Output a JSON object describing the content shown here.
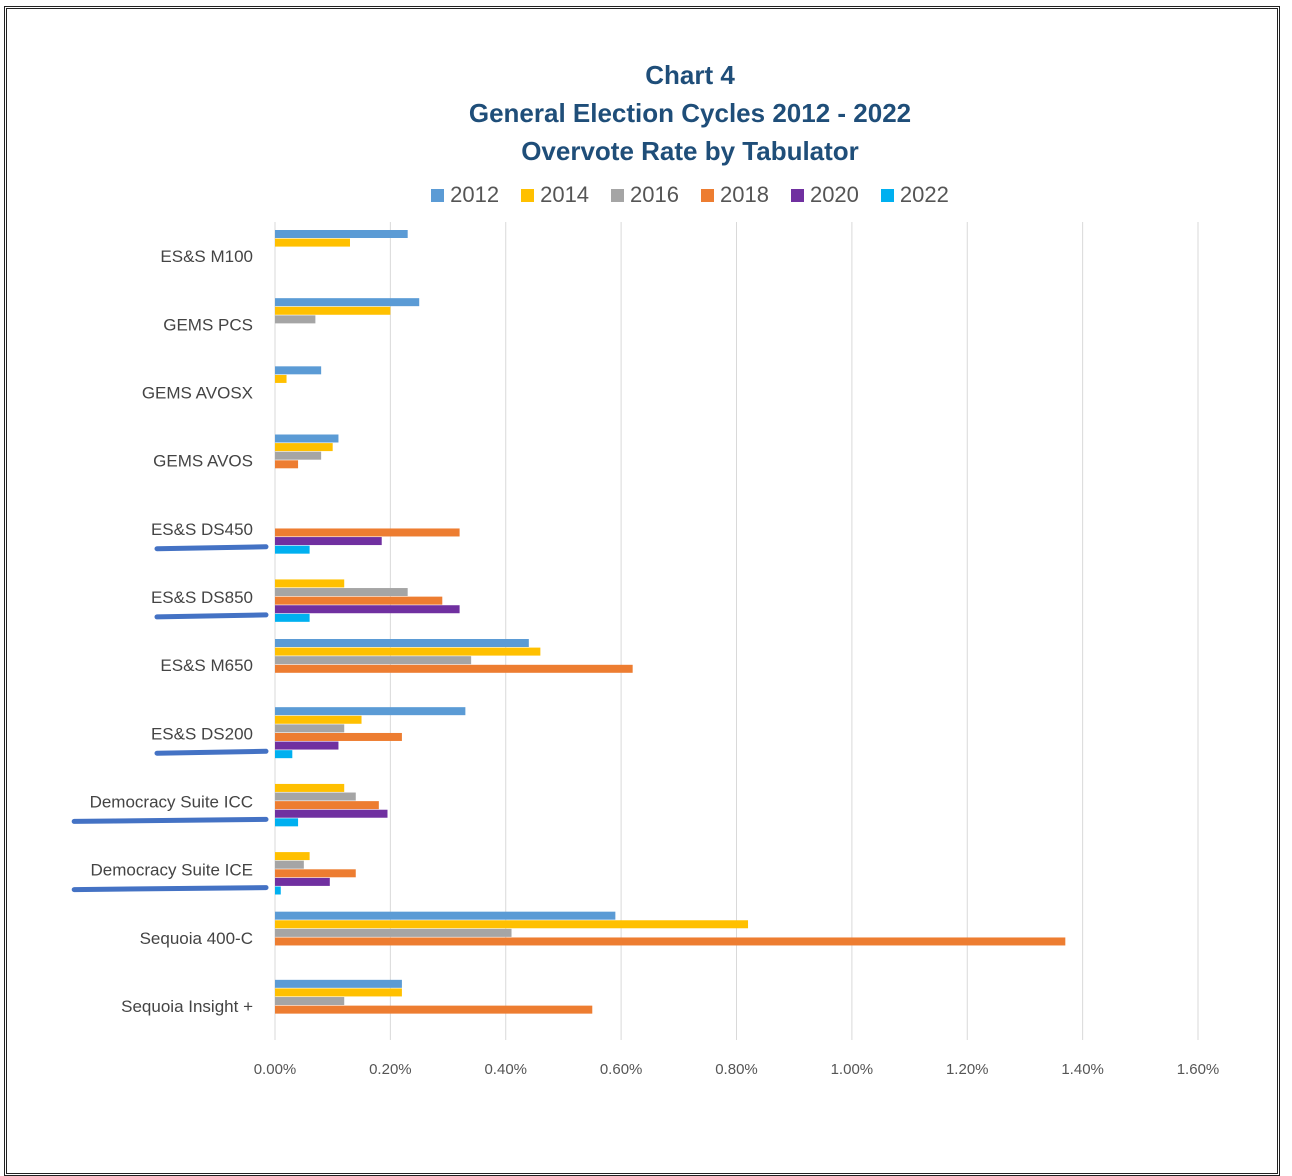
{
  "chart_data": {
    "type": "bar",
    "orientation": "horizontal",
    "title_lines": [
      "Chart 4",
      "General Election Cycles 2012 - 2022",
      "Overvote Rate by Tabulator"
    ],
    "categories": [
      "ES&S M100",
      "GEMS PCS",
      "GEMS AVOSX",
      "GEMS AVOS",
      "ES&S DS450",
      "ES&S DS850",
      "ES&S M650",
      "ES&S DS200",
      "Democracy Suite ICC",
      "Democracy Suite ICE",
      "Sequoia 400-C",
      "Sequoia Insight +"
    ],
    "underlined_categories": [
      "ES&S DS450",
      "ES&S DS850",
      "ES&S DS200",
      "Democracy Suite ICC",
      "Democracy Suite ICE"
    ],
    "series": [
      {
        "name": "2012",
        "color": "#5b9bd5",
        "values": [
          0.23,
          0.25,
          0.08,
          0.11,
          null,
          null,
          0.44,
          0.33,
          null,
          null,
          0.59,
          0.22
        ]
      },
      {
        "name": "2014",
        "color": "#ffc000",
        "values": [
          0.13,
          0.2,
          0.02,
          0.1,
          null,
          0.12,
          0.46,
          0.15,
          0.12,
          0.06,
          0.82,
          0.22
        ]
      },
      {
        "name": "2016",
        "color": "#a5a5a5",
        "values": [
          null,
          0.07,
          null,
          0.08,
          null,
          0.23,
          0.34,
          0.12,
          0.14,
          0.05,
          0.41,
          0.12
        ]
      },
      {
        "name": "2018",
        "color": "#ed7d31",
        "values": [
          null,
          null,
          null,
          0.04,
          0.32,
          0.29,
          0.62,
          0.22,
          0.18,
          0.14,
          1.37,
          0.55
        ]
      },
      {
        "name": "2020",
        "color": "#7030a0",
        "values": [
          null,
          null,
          null,
          null,
          0.185,
          0.32,
          null,
          0.11,
          0.195,
          0.095,
          null,
          null
        ]
      },
      {
        "name": "2022",
        "color": "#00b0f0",
        "values": [
          null,
          null,
          null,
          null,
          0.06,
          0.06,
          null,
          0.03,
          0.04,
          0.01,
          null,
          null
        ]
      }
    ],
    "xlim": [
      0,
      1.6
    ],
    "xticks": [
      "0.00%",
      "0.20%",
      "0.40%",
      "0.60%",
      "0.80%",
      "1.00%",
      "1.20%",
      "1.40%",
      "1.60%"
    ],
    "unit": "%",
    "grid": true,
    "legend_position": "top"
  }
}
